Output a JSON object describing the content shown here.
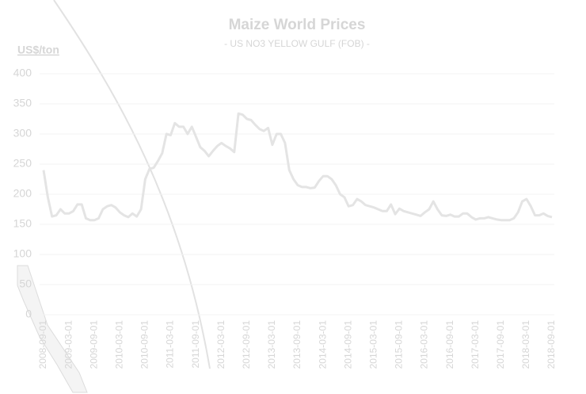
{
  "chart_data": {
    "type": "line",
    "title": "Maize World Prices",
    "subtitle": "- US NO3 YELLOW GULF (FOB) -",
    "y_label": "US$/ton",
    "categories": [
      "2008-09-01",
      null,
      null,
      null,
      null,
      null,
      "2009-03-01",
      null,
      null,
      null,
      null,
      null,
      "2009-09-01",
      null,
      null,
      null,
      null,
      null,
      "2010-03-01",
      null,
      null,
      null,
      null,
      null,
      "2010-09-01",
      null,
      null,
      null,
      null,
      null,
      "2011-03-01",
      null,
      null,
      null,
      null,
      null,
      "2011-09-01",
      null,
      null,
      null,
      null,
      null,
      "2012-03-01",
      null,
      null,
      null,
      null,
      null,
      "2012-09-01",
      null,
      null,
      null,
      null,
      null,
      "2013-03-01",
      null,
      null,
      null,
      null,
      null,
      "2013-09-01",
      null,
      null,
      null,
      null,
      null,
      "2014-03-01",
      null,
      null,
      null,
      null,
      null,
      "2014-09-01",
      null,
      null,
      null,
      null,
      null,
      "2015-03-01",
      null,
      null,
      null,
      null,
      null,
      "2015-09-01",
      null,
      null,
      null,
      null,
      null,
      "2016-03-01",
      null,
      null,
      null,
      null,
      null,
      "2016-09-01",
      null,
      null,
      null,
      null,
      null,
      "2017-03-01",
      null,
      null,
      null,
      null,
      null,
      "2017-09-01",
      null,
      null,
      null,
      null,
      null,
      "2018-03-01",
      null,
      null,
      null,
      null,
      null,
      "2018-09-01"
    ],
    "series": [
      {
        "name": "Maize",
        "color": "#e4e4e4",
        "values": [
          240,
          195,
          163,
          165,
          175,
          168,
          168,
          172,
          183,
          183,
          160,
          157,
          157,
          160,
          175,
          180,
          182,
          178,
          170,
          165,
          162,
          168,
          163,
          175,
          225,
          242,
          244,
          255,
          268,
          300,
          298,
          318,
          312,
          312,
          300,
          312,
          295,
          278,
          272,
          263,
          272,
          280,
          285,
          280,
          276,
          270,
          334,
          332,
          325,
          323,
          315,
          308,
          305,
          310,
          282,
          300,
          300,
          285,
          240,
          225,
          215,
          212,
          212,
          210,
          211,
          222,
          230,
          230,
          225,
          215,
          200,
          195,
          180,
          182,
          192,
          188,
          182,
          180,
          178,
          175,
          172,
          172,
          183,
          167,
          176,
          172,
          170,
          168,
          166,
          164,
          170,
          175,
          188,
          175,
          165,
          164,
          166,
          163,
          163,
          168,
          168,
          162,
          158,
          160,
          160,
          162,
          160,
          158,
          157,
          157,
          157,
          160,
          170,
          188,
          192,
          180,
          165,
          165,
          168,
          164,
          162
        ]
      }
    ],
    "ylim": [
      0,
      400
    ],
    "yticks": [
      0,
      50,
      100,
      150,
      200,
      250,
      300,
      350,
      400
    ],
    "grid": true
  }
}
